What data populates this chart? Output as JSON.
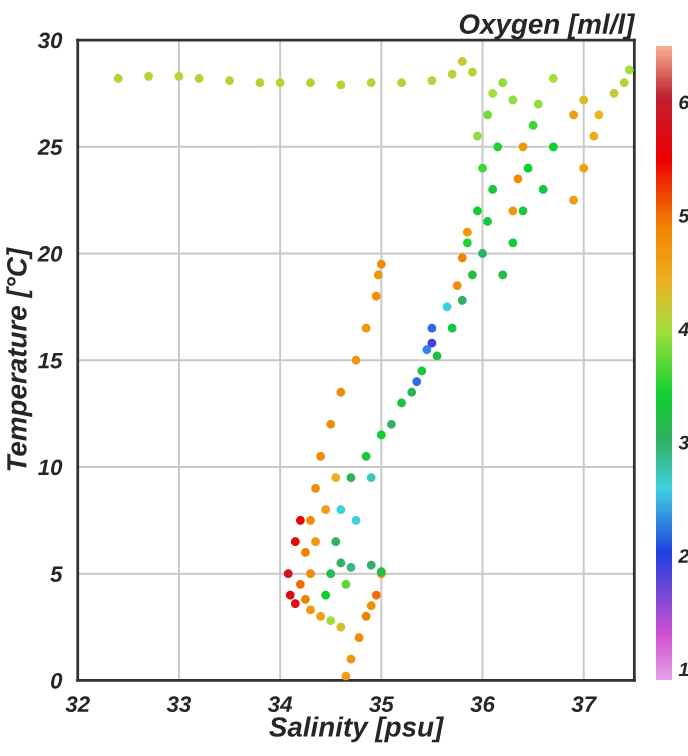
{
  "chart_data": {
    "type": "scatter",
    "xlabel": "Salinity [psu]",
    "ylabel": "Temperature [°C]",
    "clabel": "Oxygen [ml/l]",
    "xlim": [
      32,
      37.5
    ],
    "ylim": [
      0,
      30
    ],
    "xticks": [
      32,
      33,
      34,
      35,
      36,
      37
    ],
    "yticks": [
      0,
      5,
      10,
      15,
      20,
      25,
      30
    ],
    "clim": [
      0.9,
      6.5
    ],
    "cticks": [
      1,
      2,
      3,
      4,
      5,
      6
    ],
    "grid": true,
    "marker": "circle",
    "x": [
      32.4,
      32.7,
      33.0,
      33.2,
      33.5,
      33.8,
      34.0,
      34.3,
      34.6,
      34.9,
      35.2,
      35.5,
      35.7,
      34.2,
      34.25,
      34.3,
      34.35,
      34.4,
      34.5,
      34.6,
      34.75,
      34.85,
      34.95,
      35.0,
      34.97,
      34.1,
      34.08,
      34.15,
      34.2,
      34.15,
      34.25,
      34.3,
      34.35,
      34.45,
      34.55,
      34.3,
      34.4,
      34.65,
      34.7,
      34.78,
      34.85,
      34.95,
      35.0,
      34.9,
      34.6,
      34.5,
      34.45,
      34.5,
      34.6,
      34.7,
      34.9,
      35.0,
      34.65,
      34.55,
      34.6,
      34.75,
      34.7,
      34.9,
      34.85,
      35.0,
      35.1,
      35.2,
      35.3,
      35.4,
      35.45,
      35.5,
      35.55,
      35.7,
      35.8,
      35.65,
      35.9,
      35.85,
      36.0,
      36.05,
      35.95,
      36.1,
      36.0,
      36.15,
      35.95,
      36.05,
      36.1,
      35.9,
      35.8,
      36.2,
      36.3,
      35.5,
      35.35,
      36.2,
      36.3,
      36.4,
      36.45,
      36.5,
      36.55,
      36.7,
      36.6,
      36.3,
      36.35,
      36.4,
      36.9,
      37.0,
      37.1,
      37.15,
      37.0,
      36.9,
      37.3,
      37.4,
      37.45,
      36.7,
      35.75,
      35.8,
      35.85
    ],
    "values": [
      28.2,
      28.3,
      28.3,
      28.2,
      28.1,
      28.0,
      28.0,
      28.0,
      27.9,
      28.0,
      28.0,
      28.1,
      28.4,
      4.5,
      6,
      7.5,
      9,
      10.5,
      12,
      13.5,
      15,
      16.5,
      18,
      19.5,
      19,
      4,
      5,
      6.5,
      7.5,
      3.6,
      3.8,
      5,
      6.5,
      8,
      9.5,
      3.3,
      3.0,
      0.2,
      1,
      2,
      3,
      4,
      5,
      3.5,
      2.5,
      2.8,
      4,
      5,
      5.5,
      5.3,
      5.4,
      5.1,
      4.5,
      6.5,
      8,
      7.5,
      9.5,
      9.5,
      10.5,
      11.5,
      12,
      13,
      13.5,
      14.5,
      15.5,
      16.5,
      15.2,
      16.5,
      17.8,
      17.5,
      19,
      20.5,
      20,
      21.5,
      22,
      23,
      24,
      25,
      25.5,
      26.5,
      27.5,
      28.5,
      29,
      28,
      27.2,
      15.8,
      14,
      19,
      20.5,
      22,
      24,
      26,
      27,
      25,
      23,
      22,
      23.5,
      25,
      22.5,
      24,
      25.5,
      26.5,
      27.2,
      26.5,
      27.5,
      28.0,
      28.6,
      28.2,
      18.5,
      19.8,
      21
    ],
    "cvalues": [
      4.1,
      4.1,
      4.1,
      4.1,
      4.1,
      4.1,
      4.1,
      4.1,
      4.1,
      4.1,
      4.1,
      4.1,
      4.1,
      5.0,
      4.9,
      4.8,
      4.8,
      4.8,
      4.8,
      4.8,
      4.7,
      4.7,
      4.8,
      4.8,
      4.7,
      5.7,
      5.8,
      5.6,
      5.6,
      5.7,
      4.9,
      4.8,
      4.7,
      4.6,
      4.4,
      4.7,
      4.6,
      4.6,
      4.7,
      4.8,
      4.9,
      5.0,
      4.9,
      4.8,
      4.3,
      4.0,
      3.4,
      3.2,
      3.0,
      2.9,
      3.0,
      3.2,
      3.7,
      3.0,
      2.6,
      2.6,
      3.1,
      2.7,
      3.3,
      3.4,
      3.0,
      3.3,
      3.1,
      3.3,
      2.3,
      2.2,
      3.2,
      3.3,
      3.0,
      2.6,
      3.2,
      3.5,
      3.1,
      3.3,
      3.4,
      3.3,
      3.6,
      3.5,
      3.9,
      3.8,
      4.0,
      4.1,
      4.2,
      3.9,
      3.9,
      1.9,
      2.2,
      3.2,
      3.4,
      3.3,
      3.4,
      3.6,
      3.9,
      3.4,
      3.3,
      4.7,
      4.8,
      4.7,
      4.6,
      4.6,
      4.5,
      4.4,
      4.3,
      4.6,
      4.2,
      4.1,
      4.0,
      4.0,
      4.8,
      4.9,
      4.7
    ]
  }
}
